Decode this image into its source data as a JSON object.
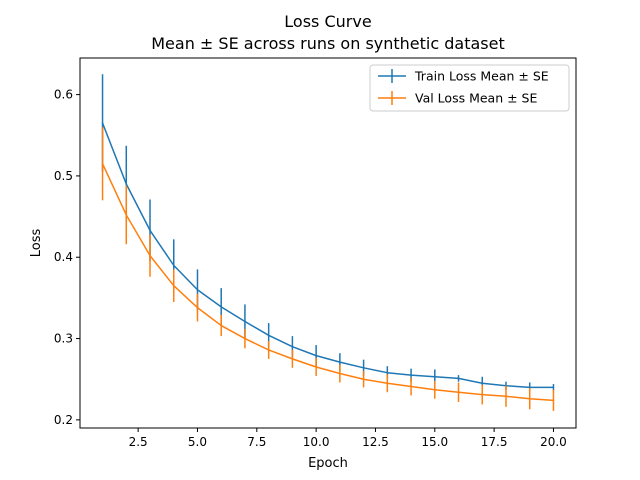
{
  "chart_data": {
    "type": "line",
    "title": "Loss Curve",
    "subtitle": "Mean ± SE across runs on synthetic dataset",
    "xlabel": "Epoch",
    "ylabel": "Loss",
    "xlim": [
      0.05,
      20.95
    ],
    "ylim": [
      0.19,
      0.645
    ],
    "xticks": [
      2.5,
      5.0,
      7.5,
      10.0,
      12.5,
      15.0,
      17.5,
      20.0
    ],
    "xtick_labels": [
      "2.5",
      "5.0",
      "7.5",
      "10.0",
      "12.5",
      "15.0",
      "17.5",
      "20.0"
    ],
    "yticks": [
      0.2,
      0.3,
      0.4,
      0.5,
      0.6
    ],
    "ytick_labels": [
      "0.2",
      "0.3",
      "0.4",
      "0.5",
      "0.6"
    ],
    "grid": false,
    "legend_position": "top-right",
    "x": [
      1,
      2,
      3,
      4,
      5,
      6,
      7,
      8,
      9,
      10,
      11,
      12,
      13,
      14,
      15,
      16,
      17,
      18,
      19,
      20
    ],
    "series": [
      {
        "name": "Train Loss Mean ± SE",
        "color": "#1f77b4",
        "values": [
          0.565,
          0.49,
          0.433,
          0.39,
          0.36,
          0.339,
          0.321,
          0.304,
          0.29,
          0.279,
          0.271,
          0.264,
          0.258,
          0.255,
          0.253,
          0.251,
          0.245,
          0.242,
          0.24,
          0.24
        ],
        "se": [
          0.06,
          0.047,
          0.038,
          0.032,
          0.025,
          0.023,
          0.021,
          0.015,
          0.013,
          0.013,
          0.011,
          0.01,
          0.008,
          0.008,
          0.009,
          0.004,
          0.008,
          0.005,
          0.006,
          0.004
        ]
      },
      {
        "name": "Val Loss Mean ± SE",
        "color": "#ff7f0e",
        "values": [
          0.515,
          0.452,
          0.402,
          0.365,
          0.338,
          0.316,
          0.3,
          0.286,
          0.275,
          0.265,
          0.257,
          0.25,
          0.245,
          0.241,
          0.237,
          0.234,
          0.231,
          0.229,
          0.226,
          0.224
        ],
        "se": [
          0.045,
          0.036,
          0.026,
          0.02,
          0.017,
          0.013,
          0.012,
          0.011,
          0.011,
          0.011,
          0.011,
          0.01,
          0.011,
          0.011,
          0.011,
          0.012,
          0.012,
          0.013,
          0.013,
          0.013
        ]
      }
    ]
  }
}
